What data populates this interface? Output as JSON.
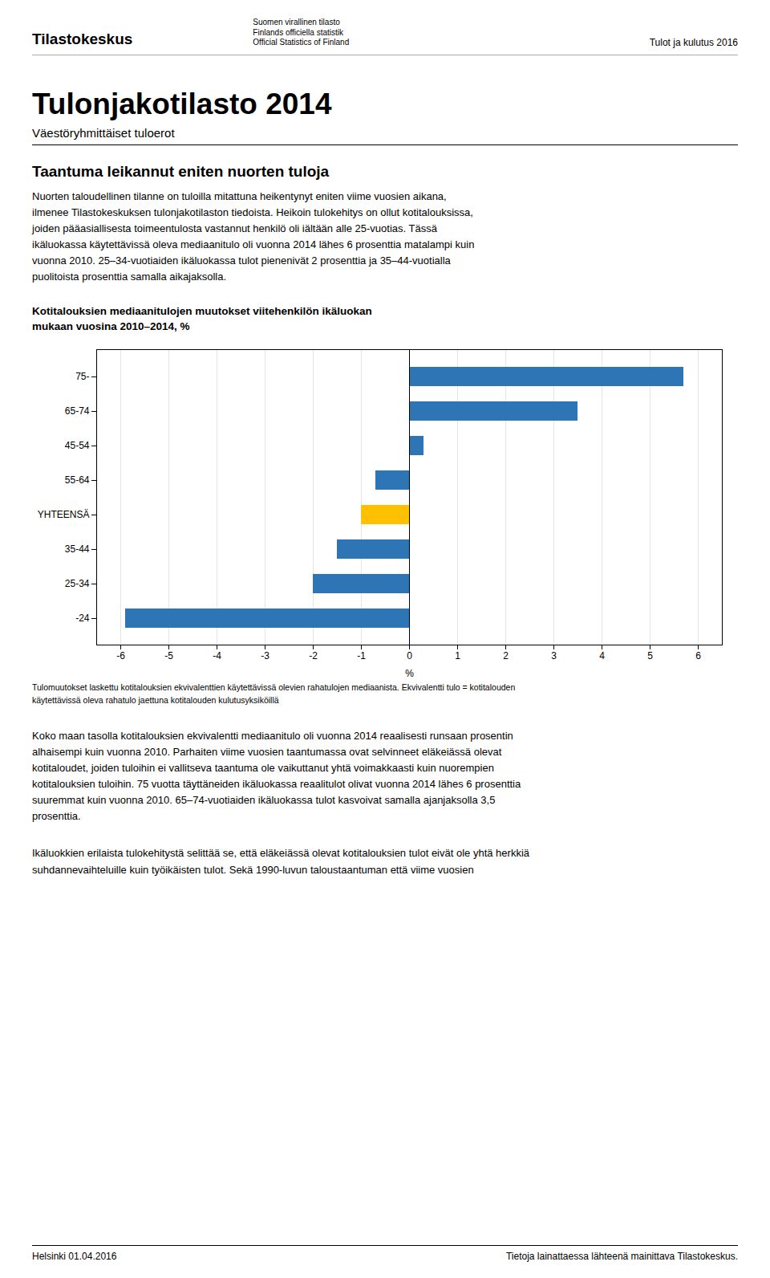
{
  "chart_data": {
    "type": "bar",
    "orientation": "horizontal",
    "title": "Kotitalouksien mediaanitulojen muutokset viitehenkilön ikäluokan\nmukaan vuosina 2010–2014, %",
    "categories": [
      "-24",
      "25-34",
      "35-44",
      "YHTEENSÄ",
      "55-64",
      "45-54",
      "65-74",
      "75-"
    ],
    "values": [
      -5.9,
      -2.0,
      -1.5,
      -1.0,
      -0.7,
      0.3,
      3.5,
      5.7
    ],
    "colors": [
      "#2E75B6",
      "#2E75B6",
      "#2E75B6",
      "#FFC000",
      "#2E75B6",
      "#2E75B6",
      "#2E75B6",
      "#2E75B6"
    ],
    "xlabel": "%",
    "xlim": [
      -6.5,
      6.5
    ],
    "xticks": [
      -6,
      -5,
      -4,
      -3,
      -2,
      -1,
      0,
      1,
      2,
      3,
      4,
      5,
      6
    ],
    "grid": true,
    "annotations": [
      "Tulomuutokset laskettu kotitalouksien ekvivalenttien käytettävissä olevien rahatulojen mediaanista. Ekvivalentti tulo = kotitalouden\nkäytettävissä oleva rahatulo jaettuna kotitalouden kulutusyksiköillä"
    ]
  },
  "header_left": "Tilastokeskus",
  "logo_text": [
    "Suomen virallinen tilasto",
    "Finlands officiella statistik",
    "Official Statistics of Finland"
  ],
  "header_right": "Tulot ja kulutus 2016",
  "page_title": "Tulonjakotilasto 2014",
  "page_subtitle": "Väestöryhmittäiset tuloerot",
  "section_title": "Taantuma leikannut eniten nuorten tuloja",
  "body_text": [
    "Nuorten taloudellinen tilanne on tuloilla mitattuna heikentynyt eniten viime vuosien aikana,\nilmenee Tilastokeskuksen tulonjakotilaston tiedoista. Heikoin tulokehitys on ollut kotitalouksissa,\njoiden pääasiallisesta toimeentulosta vastannut henkilö oli iältään alle 25-vuotias. Tässä\nikäluokassa käytettävissä oleva mediaanitulo oli vuonna 2014 lähes 6 prosenttia matalampi kuin\nvuonna 2010. 25–34-vuotiaiden ikäluokassa tulot pienenivät 2 prosenttia ja 35–44-vuotialla\npuolitoista prosenttia samalla aikajaksolla.",
    "Koko maan tasolla kotitalouksien ekvivalentti mediaanitulo oli vuonna 2014 reaalisesti runsaan prosentin\nalhaisempi kuin vuonna 2010. Parhaiten viime vuosien taantumassa ovat selvinneet eläkeiässä olevat\nkotitaloudet, joiden tuloihin ei vallitseva taantuma ole vaikuttanut yhtä voimakkaasti kuin nuorempien\nkotitalouksien tuloihin. 75 vuotta täyttäneiden ikäluokassa reaalitulot olivat vuonna 2014 lähes 6 prosenttia\nsuuremmat kuin vuonna 2010. 65–74-vuotiaiden ikäluokassa tulot kasvoivat samalla ajanjaksolla 3,5\nprosenttia.",
    "Ikäluokkien erilaista tulokehitystä selittää se, että eläkeiässä olevat kotitalouksien tulot eivät ole yhtä herkkiä\nsuhdannevaihteluille kuin työikäisten tulot. Sekä 1990-luvun taloustaantuman että viime vuosien"
  ],
  "footer_left": "Helsinki 01.04.2016",
  "footer_right": "Tietoja lainattaessa lähteenä mainittava Tilastokeskus."
}
